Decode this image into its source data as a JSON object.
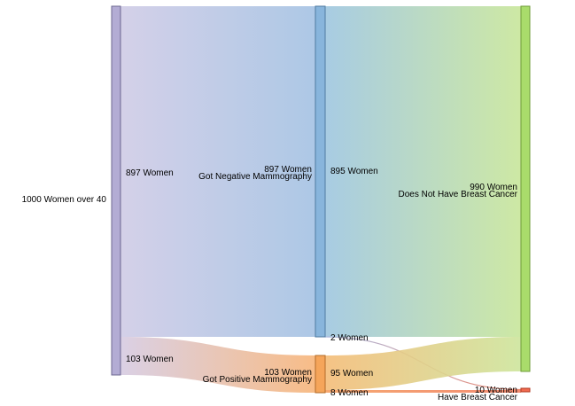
{
  "chart_data": {
    "type": "sankey",
    "unit": "Women",
    "nodes": [
      {
        "id": "all",
        "label": "1000 Women over 40",
        "value": 1000,
        "color": "#b3acd4",
        "stroke": "#6d6891"
      },
      {
        "id": "neg",
        "label_value": "897 Women",
        "label_name": "Got Negative Mammography",
        "value": 897,
        "color": "#88b5dc",
        "stroke": "#4f7aa0"
      },
      {
        "id": "pos",
        "label_value": "103 Women",
        "label_name": "Got Positive Mammography",
        "value": 103,
        "color": "#f5a55a",
        "stroke": "#b26c2a"
      },
      {
        "id": "no",
        "label_value": "990 Women",
        "label_name": "Does Not Have Breast Cancer",
        "value": 990,
        "color": "#a9dc6b",
        "stroke": "#6f9c3a"
      },
      {
        "id": "yes",
        "label_value": "10 Women",
        "label_name": "Have Breast Cancer",
        "value": 10,
        "color": "#f06a50",
        "stroke": "#b23a22"
      }
    ],
    "links": [
      {
        "source": "all",
        "target": "neg",
        "value": 897,
        "label": "897 Women"
      },
      {
        "source": "all",
        "target": "pos",
        "value": 103,
        "label": "103 Women"
      },
      {
        "source": "neg",
        "target": "no",
        "value": 895,
        "label": "895 Women"
      },
      {
        "source": "neg",
        "target": "yes",
        "value": 2,
        "label": "2 Women"
      },
      {
        "source": "pos",
        "target": "no",
        "value": 95,
        "label": "95 Women"
      },
      {
        "source": "pos",
        "target": "yes",
        "value": 8,
        "label": "8 Women"
      }
    ]
  }
}
